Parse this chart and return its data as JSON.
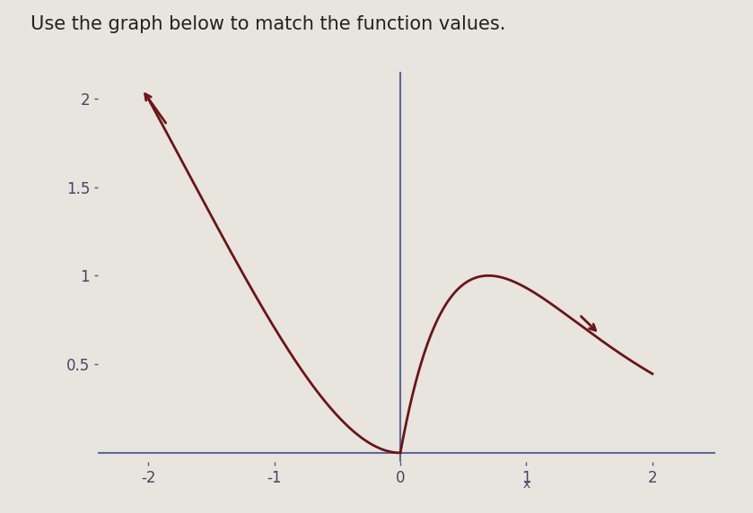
{
  "title": "Use the graph below to match the function values.",
  "title_fontsize": 15,
  "title_color": "#222222",
  "background_color": "#e8e4de",
  "plot_background_color": "#e8e4de",
  "line_color": "#6b1515",
  "line_width": 2.0,
  "axis_color": "#5a6a9a",
  "xlim": [
    -2.4,
    2.5
  ],
  "ylim": [
    -0.05,
    2.15
  ],
  "xticks": [
    -2,
    -1,
    0,
    1,
    2
  ],
  "yticks": [
    0.5,
    1.0,
    1.5,
    2.0
  ],
  "tick_fontsize": 12
}
